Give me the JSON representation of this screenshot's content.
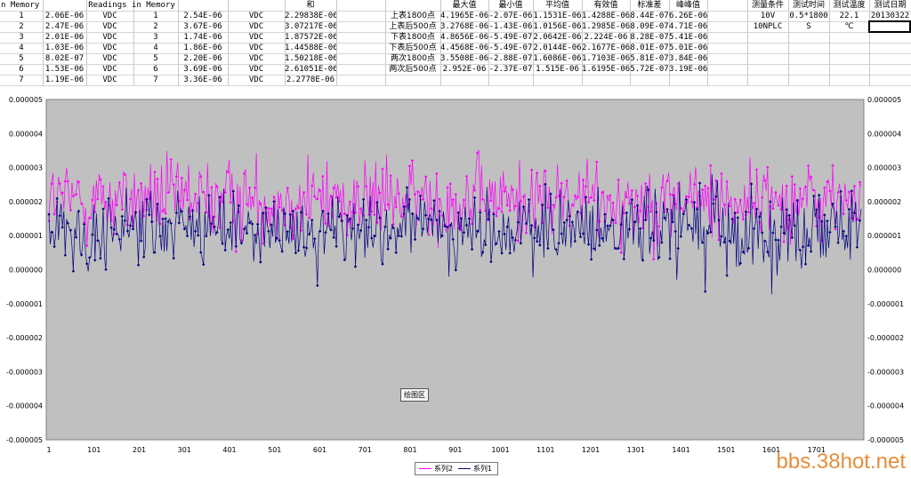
{
  "sheet": {
    "col_headers": {
      "a": "n Memory",
      "c": "Readings in Memory",
      "h": "和"
    },
    "stat_headers": [
      "最大值",
      "最小值",
      "平均值",
      "有效值",
      "标准差",
      "峰峰值"
    ],
    "cond_headers": [
      "测量条件",
      "测试时间",
      "测试温度",
      "测试日期"
    ],
    "rows": [
      {
        "n1": "1",
        "v1": "2.06E-06",
        "u1": "VDC",
        "n2": "1",
        "v2": "2.54E-06",
        "u2": "VDC",
        "sum": "2.29838E-06"
      },
      {
        "n1": "2",
        "v1": "2.47E-06",
        "u1": "VDC",
        "n2": "2",
        "v2": "3.67E-06",
        "u2": "VDC",
        "sum": "3.07217E-06"
      },
      {
        "n1": "3",
        "v1": "2.01E-06",
        "u1": "VDC",
        "n2": "3",
        "v2": "1.74E-06",
        "u2": "VDC",
        "sum": "1.87572E-06"
      },
      {
        "n1": "4",
        "v1": "1.03E-06",
        "u1": "VDC",
        "n2": "4",
        "v2": "1.86E-06",
        "u2": "VDC",
        "sum": "1.44588E-06"
      },
      {
        "n1": "5",
        "v1": "8.02E-07",
        "u1": "VDC",
        "n2": "5",
        "v2": "2.20E-06",
        "u2": "VDC",
        "sum": "1.50218E-06"
      },
      {
        "n1": "6",
        "v1": "1.53E-06",
        "u1": "VDC",
        "n2": "6",
        "v2": "3.69E-06",
        "u2": "VDC",
        "sum": "2.61051E-06"
      },
      {
        "n1": "7",
        "v1": "1.19E-06",
        "u1": "VDC",
        "n2": "7",
        "v2": "3.36E-06",
        "u2": "VDC",
        "sum": "2.2778E-06"
      }
    ],
    "stats": [
      {
        "label": "上表1800点",
        "max": "4.1965E-06",
        "min": "-2.07E-06",
        "avg": "1.1531E-06",
        "rms": "1.4288E-06",
        "std": "8.44E-07",
        "pp": "6.26E-06"
      },
      {
        "label": "上表后500点",
        "max": "3.2768E-06",
        "min": "-1.43E-06",
        "avg": "1.0156E-06",
        "rms": "1.2985E-06",
        "std": "8.09E-07",
        "pp": "4.71E-06"
      },
      {
        "label": "下表1800点",
        "max": "4.8656E-06",
        "min": "-5.49E-07",
        "avg": "2.0642E-06",
        "rms": "2.224E-06",
        "std": "8.28E-07",
        "pp": "5.41E-06"
      },
      {
        "label": "下表后500点",
        "max": "4.4568E-06",
        "min": "-5.49E-07",
        "avg": "2.0144E-06",
        "rms": "2.1677E-06",
        "std": "8.01E-07",
        "pp": "5.01E-06"
      },
      {
        "label": "两次1800点",
        "max": "3.5508E-06",
        "min": "-2.88E-07",
        "avg": "1.6086E-06",
        "rms": "1.7103E-06",
        "std": "5.81E-07",
        "pp": "3.84E-06"
      },
      {
        "label": "两次后500点",
        "max": "2.952E-06",
        "min": "-2.37E-07",
        "avg": "1.515E-06",
        "rms": "1.6195E-06",
        "std": "5.72E-07",
        "pp": "3.19E-06"
      }
    ],
    "cond_row1": [
      "10V",
      "0.5*1800",
      "22.1",
      "20130322"
    ],
    "cond_row2": [
      "10NPLC",
      "S",
      "℃",
      ""
    ]
  },
  "tooltip": "绘图区",
  "legend": [
    {
      "name": "系列2",
      "color": "#ff00ff"
    },
    {
      "name": "系列1",
      "color": "#000080"
    }
  ],
  "watermark": "bbs.38hot.net",
  "chart_data": {
    "type": "line",
    "x_ticks": [
      "1",
      "101",
      "201",
      "301",
      "401",
      "501",
      "601",
      "701",
      "801",
      "901",
      "1001",
      "1101",
      "1201",
      "1301",
      "1401",
      "1501",
      "1601",
      "1701"
    ],
    "y_ticks": [
      "0.000005",
      "0.000004",
      "0.000003",
      "0.000002",
      "0.000001",
      "0.000000",
      "-0.000001",
      "-0.000002",
      "-0.000003",
      "-0.000004",
      "-0.000005"
    ],
    "ylim": [
      -5e-06,
      5e-06
    ],
    "xlim": [
      1,
      1800
    ],
    "grid": false,
    "legend_position": "bottom",
    "series": [
      {
        "name": "系列2",
        "color": "#ff00ff",
        "mean": 2.06e-06,
        "std": 8.3e-07,
        "max": 4.87e-06,
        "min": -5.5e-07
      },
      {
        "name": "系列1",
        "color": "#000080",
        "mean": 1.15e-06,
        "std": 8.4e-07,
        "max": 4.2e-06,
        "min": -2.07e-06
      }
    ]
  }
}
